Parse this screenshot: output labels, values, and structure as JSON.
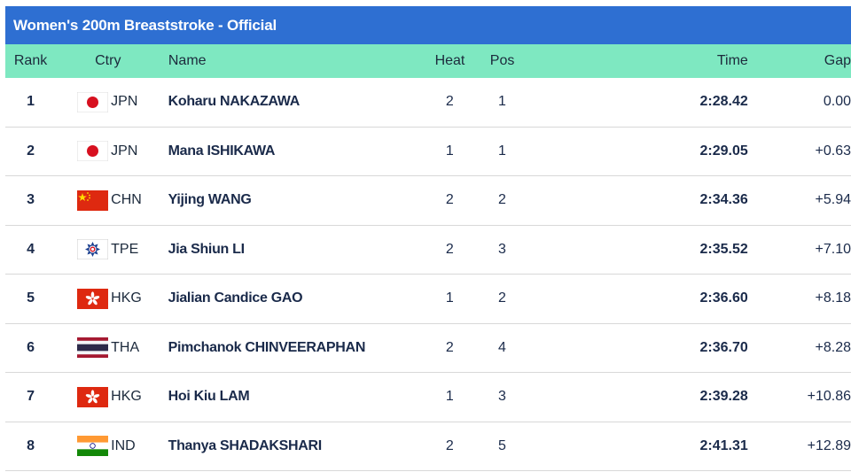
{
  "title": "Women's 200m Breaststroke  -  Official",
  "columns": {
    "rank": "Rank",
    "ctry": "Ctry",
    "name": "Name",
    "heat": "Heat",
    "pos": "Pos",
    "time": "Time",
    "gap": "Gap"
  },
  "rows": [
    {
      "rank": "1",
      "ctry": "JPN",
      "flag": "japan-flag-icon",
      "name": "Koharu NAKAZAWA",
      "heat": "2",
      "pos": "1",
      "time": "2:28.42",
      "gap": "0.00"
    },
    {
      "rank": "2",
      "ctry": "JPN",
      "flag": "japan-flag-icon",
      "name": "Mana ISHIKAWA",
      "heat": "1",
      "pos": "1",
      "time": "2:29.05",
      "gap": "+0.63"
    },
    {
      "rank": "3",
      "ctry": "CHN",
      "flag": "china-flag-icon",
      "name": "Yijing WANG",
      "heat": "2",
      "pos": "2",
      "time": "2:34.36",
      "gap": "+5.94"
    },
    {
      "rank": "4",
      "ctry": "TPE",
      "flag": "chinese-taipei-flag-icon",
      "name": "Jia Shiun LI",
      "heat": "2",
      "pos": "3",
      "time": "2:35.52",
      "gap": "+7.10"
    },
    {
      "rank": "5",
      "ctry": "HKG",
      "flag": "hong-kong-flag-icon",
      "name": "Jialian Candice GAO",
      "heat": "1",
      "pos": "2",
      "time": "2:36.60",
      "gap": "+8.18"
    },
    {
      "rank": "6",
      "ctry": "THA",
      "flag": "thailand-flag-icon",
      "name": "Pimchanok CHINVEERAPHAN",
      "heat": "2",
      "pos": "4",
      "time": "2:36.70",
      "gap": "+8.28"
    },
    {
      "rank": "7",
      "ctry": "HKG",
      "flag": "hong-kong-flag-icon",
      "name": "Hoi Kiu LAM",
      "heat": "1",
      "pos": "3",
      "time": "2:39.28",
      "gap": "+10.86"
    },
    {
      "rank": "8",
      "ctry": "IND",
      "flag": "india-flag-icon",
      "name": "Thanya SHADAKSHARI",
      "heat": "2",
      "pos": "5",
      "time": "2:41.31",
      "gap": "+12.89"
    }
  ],
  "colors": {
    "title_bar": "#2e6fd2",
    "header_bar": "#7ee8c1",
    "text": "#1a2a4a"
  }
}
